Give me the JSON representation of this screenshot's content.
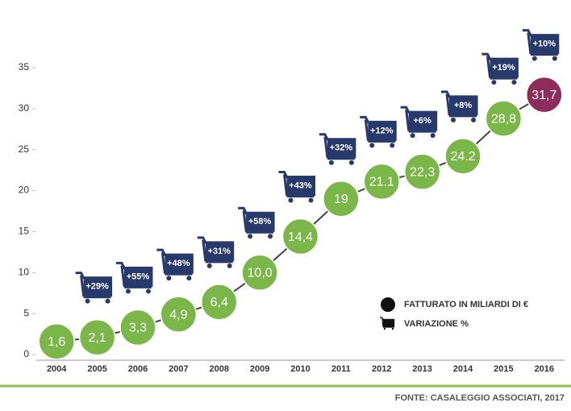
{
  "chart_data": {
    "type": "line",
    "categories": [
      "2004",
      "2005",
      "2006",
      "2007",
      "2008",
      "2009",
      "2010",
      "2011",
      "2012",
      "2013",
      "2014",
      "2015",
      "2016"
    ],
    "series": [
      {
        "name": "FATTURATO IN MILIARDI DI €",
        "color": "#7ab648",
        "point_colors": [
          "#7ab648",
          "#7ab648",
          "#7ab648",
          "#7ab648",
          "#7ab648",
          "#7ab648",
          "#7ab648",
          "#7ab648",
          "#7ab648",
          "#7ab648",
          "#7ab648",
          "#7ab648",
          "#8e2d5c"
        ],
        "values": [
          1.6,
          2.1,
          3.3,
          4.9,
          6.4,
          10.0,
          14.4,
          19,
          21.1,
          22.3,
          24.2,
          28.8,
          31.7
        ],
        "value_labels": [
          "1,6",
          "2,1",
          "3,3",
          "4,9",
          "6,4",
          "10,0",
          "14,4",
          "19",
          "21.1",
          "22,3",
          "24.2",
          "28,8",
          "31,7"
        ]
      },
      {
        "name": "VARIAZIONE %",
        "color": "#283a6c",
        "values": [
          null,
          29,
          55,
          48,
          31,
          58,
          43,
          32,
          12,
          6,
          8,
          19,
          10
        ],
        "value_labels": [
          null,
          "+29%",
          "+55%",
          "+48%",
          "+31%",
          "+58%",
          "+43%",
          "+32%",
          "+12%",
          "+6%",
          "+8%",
          "+19%",
          "+10%"
        ]
      }
    ],
    "ylim": [
      0,
      35
    ],
    "yticks": [
      0,
      5,
      10,
      15,
      20,
      25,
      30,
      35
    ],
    "grid": false,
    "legend": "lower right",
    "source": "FONTE: CASALEGGIO ASSOCIATI, 2017"
  }
}
